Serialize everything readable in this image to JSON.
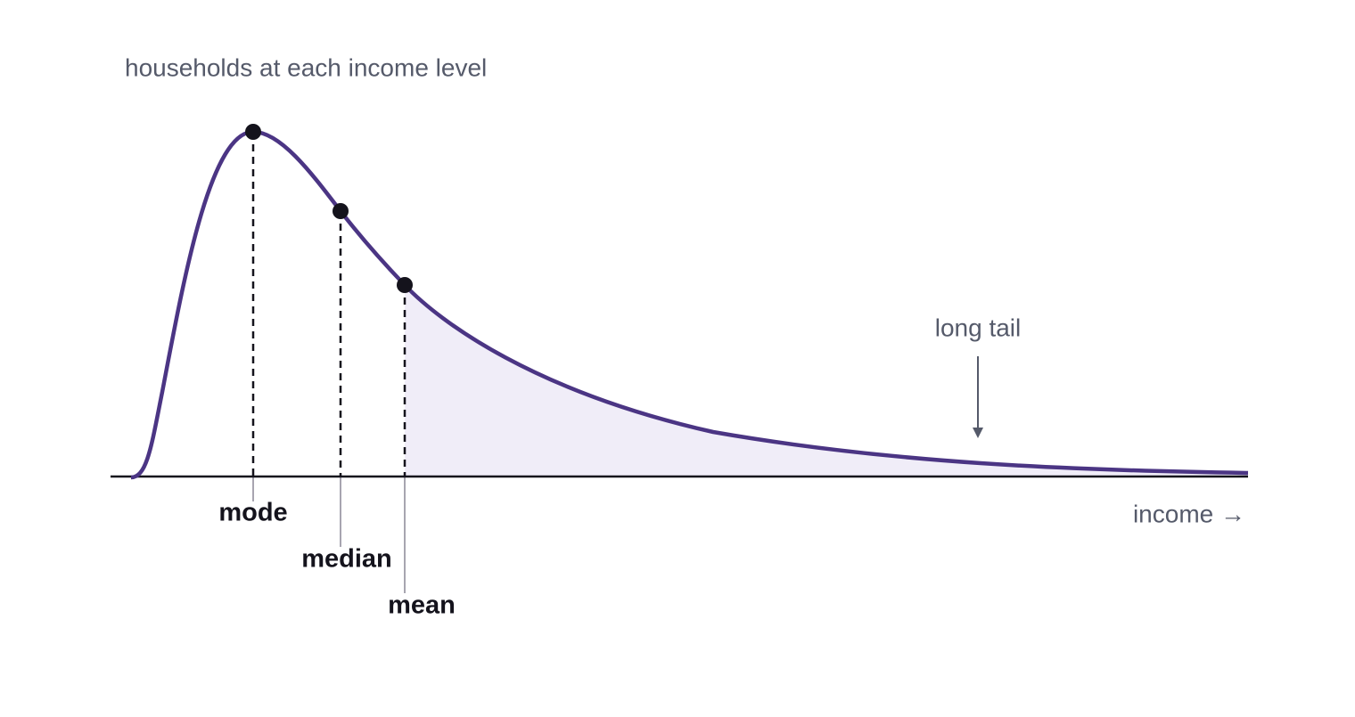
{
  "title": "households at each income level",
  "x_axis_label": "income →",
  "markers": [
    {
      "label": "mode"
    },
    {
      "label": "median"
    },
    {
      "label": "mean"
    }
  ],
  "annotation": "long tail"
}
